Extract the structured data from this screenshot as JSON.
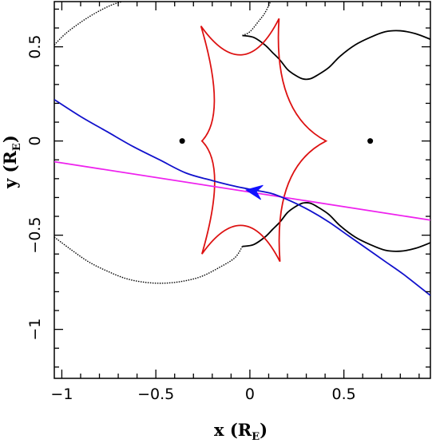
{
  "chart_data": {
    "type": "line",
    "xlabel": "x (R",
    "xlabel_sub": "E",
    "xlabel_close": ")",
    "ylabel": "y (R",
    "ylabel_sub": "E",
    "ylabel_close": ")",
    "xlim": [
      -1.04,
      0.96
    ],
    "ylim": [
      -1.26,
      0.74
    ],
    "x_ticks": [
      {
        "value": -1,
        "label": "−1"
      },
      {
        "value": -0.5,
        "label": "−0.5"
      },
      {
        "value": 0,
        "label": "0"
      },
      {
        "value": 0.5,
        "label": "0.5"
      }
    ],
    "y_ticks": [
      {
        "value": -1,
        "label": "−1"
      },
      {
        "value": -0.5,
        "label": "−0.5"
      },
      {
        "value": 0,
        "label": "0"
      },
      {
        "value": 0.5,
        "label": "0.5"
      }
    ],
    "grid": false,
    "legend": "none",
    "colors": {
      "caustic": "#dd1111",
      "critical_curve": "#000000",
      "lens_trajectory": "#1111cc",
      "source_trajectory": "#ee22ee",
      "arrow": "#1111ff",
      "lens_points": "#000000"
    },
    "lens_points": [
      {
        "x": -0.36,
        "y": 0.0
      },
      {
        "x": 0.64,
        "y": 0.0
      }
    ],
    "caustic": {
      "cusps": [
        {
          "x": -0.255,
          "y": 0.0
        },
        {
          "x": -0.26,
          "y": 0.61
        },
        {
          "x": 0.155,
          "y": 0.65
        },
        {
          "x": 0.405,
          "y": 0.0
        },
        {
          "x": 0.16,
          "y": -0.64
        },
        {
          "x": -0.255,
          "y": -0.6
        }
      ]
    },
    "critical_curve": {
      "upper_solid": [
        [
          -0.04,
          0.56
        ],
        [
          0.02,
          0.55
        ],
        [
          0.08,
          0.51
        ],
        [
          0.12,
          0.47
        ],
        [
          0.16,
          0.43
        ],
        [
          0.2,
          0.38
        ],
        [
          0.24,
          0.35
        ],
        [
          0.28,
          0.33
        ],
        [
          0.32,
          0.33
        ],
        [
          0.36,
          0.35
        ],
        [
          0.42,
          0.39
        ],
        [
          0.48,
          0.45
        ],
        [
          0.56,
          0.51
        ],
        [
          0.64,
          0.55
        ],
        [
          0.72,
          0.58
        ],
        [
          0.8,
          0.585
        ],
        [
          0.88,
          0.57
        ],
        [
          0.96,
          0.54
        ]
      ],
      "upper_dotted": [
        [
          -1.04,
          0.51
        ],
        [
          -0.98,
          0.57
        ],
        [
          -0.9,
          0.63
        ],
        [
          -0.82,
          0.68
        ],
        [
          -0.74,
          0.72
        ],
        [
          -0.68,
          0.74
        ]
      ],
      "upper_dotted_inner": [
        [
          -0.04,
          0.56
        ],
        [
          0.0,
          0.58
        ],
        [
          0.05,
          0.64
        ],
        [
          0.08,
          0.68
        ],
        [
          0.11,
          0.74
        ]
      ],
      "lower_solid": [
        [
          -0.04,
          -0.56
        ],
        [
          0.02,
          -0.55
        ],
        [
          0.08,
          -0.51
        ],
        [
          0.12,
          -0.47
        ],
        [
          0.16,
          -0.43
        ],
        [
          0.2,
          -0.38
        ],
        [
          0.24,
          -0.35
        ],
        [
          0.28,
          -0.33
        ],
        [
          0.32,
          -0.33
        ],
        [
          0.36,
          -0.35
        ],
        [
          0.42,
          -0.39
        ],
        [
          0.48,
          -0.45
        ],
        [
          0.56,
          -0.51
        ],
        [
          0.64,
          -0.55
        ],
        [
          0.72,
          -0.58
        ],
        [
          0.8,
          -0.585
        ],
        [
          0.88,
          -0.57
        ],
        [
          0.96,
          -0.54
        ]
      ],
      "lower_dotted": [
        [
          -1.04,
          -0.51
        ],
        [
          -0.96,
          -0.57
        ],
        [
          -0.86,
          -0.64
        ],
        [
          -0.76,
          -0.69
        ],
        [
          -0.66,
          -0.73
        ],
        [
          -0.56,
          -0.75
        ],
        [
          -0.46,
          -0.755
        ],
        [
          -0.36,
          -0.745
        ],
        [
          -0.26,
          -0.72
        ],
        [
          -0.16,
          -0.67
        ],
        [
          -0.08,
          -0.62
        ],
        [
          -0.04,
          -0.56
        ]
      ]
    },
    "lens_trajectory": [
      [
        -1.04,
        0.22
      ],
      [
        -0.9,
        0.13
      ],
      [
        -0.76,
        0.05
      ],
      [
        -0.62,
        -0.03
      ],
      [
        -0.48,
        -0.1
      ],
      [
        -0.34,
        -0.17
      ],
      [
        -0.2,
        -0.21
      ],
      [
        -0.08,
        -0.24
      ],
      [
        0.02,
        -0.26
      ],
      [
        0.12,
        -0.28
      ],
      [
        0.22,
        -0.32
      ],
      [
        0.32,
        -0.37
      ],
      [
        0.42,
        -0.43
      ],
      [
        0.52,
        -0.5
      ],
      [
        0.62,
        -0.57
      ],
      [
        0.72,
        -0.64
      ],
      [
        0.82,
        -0.71
      ],
      [
        0.96,
        -0.82
      ]
    ],
    "source_trajectory": [
      [
        -1.04,
        -0.11
      ],
      [
        0.96,
        -0.42
      ]
    ],
    "direction_arrow": {
      "x": -0.02,
      "y": -0.26,
      "dx": -1.0,
      "dy": 0.155
    }
  }
}
